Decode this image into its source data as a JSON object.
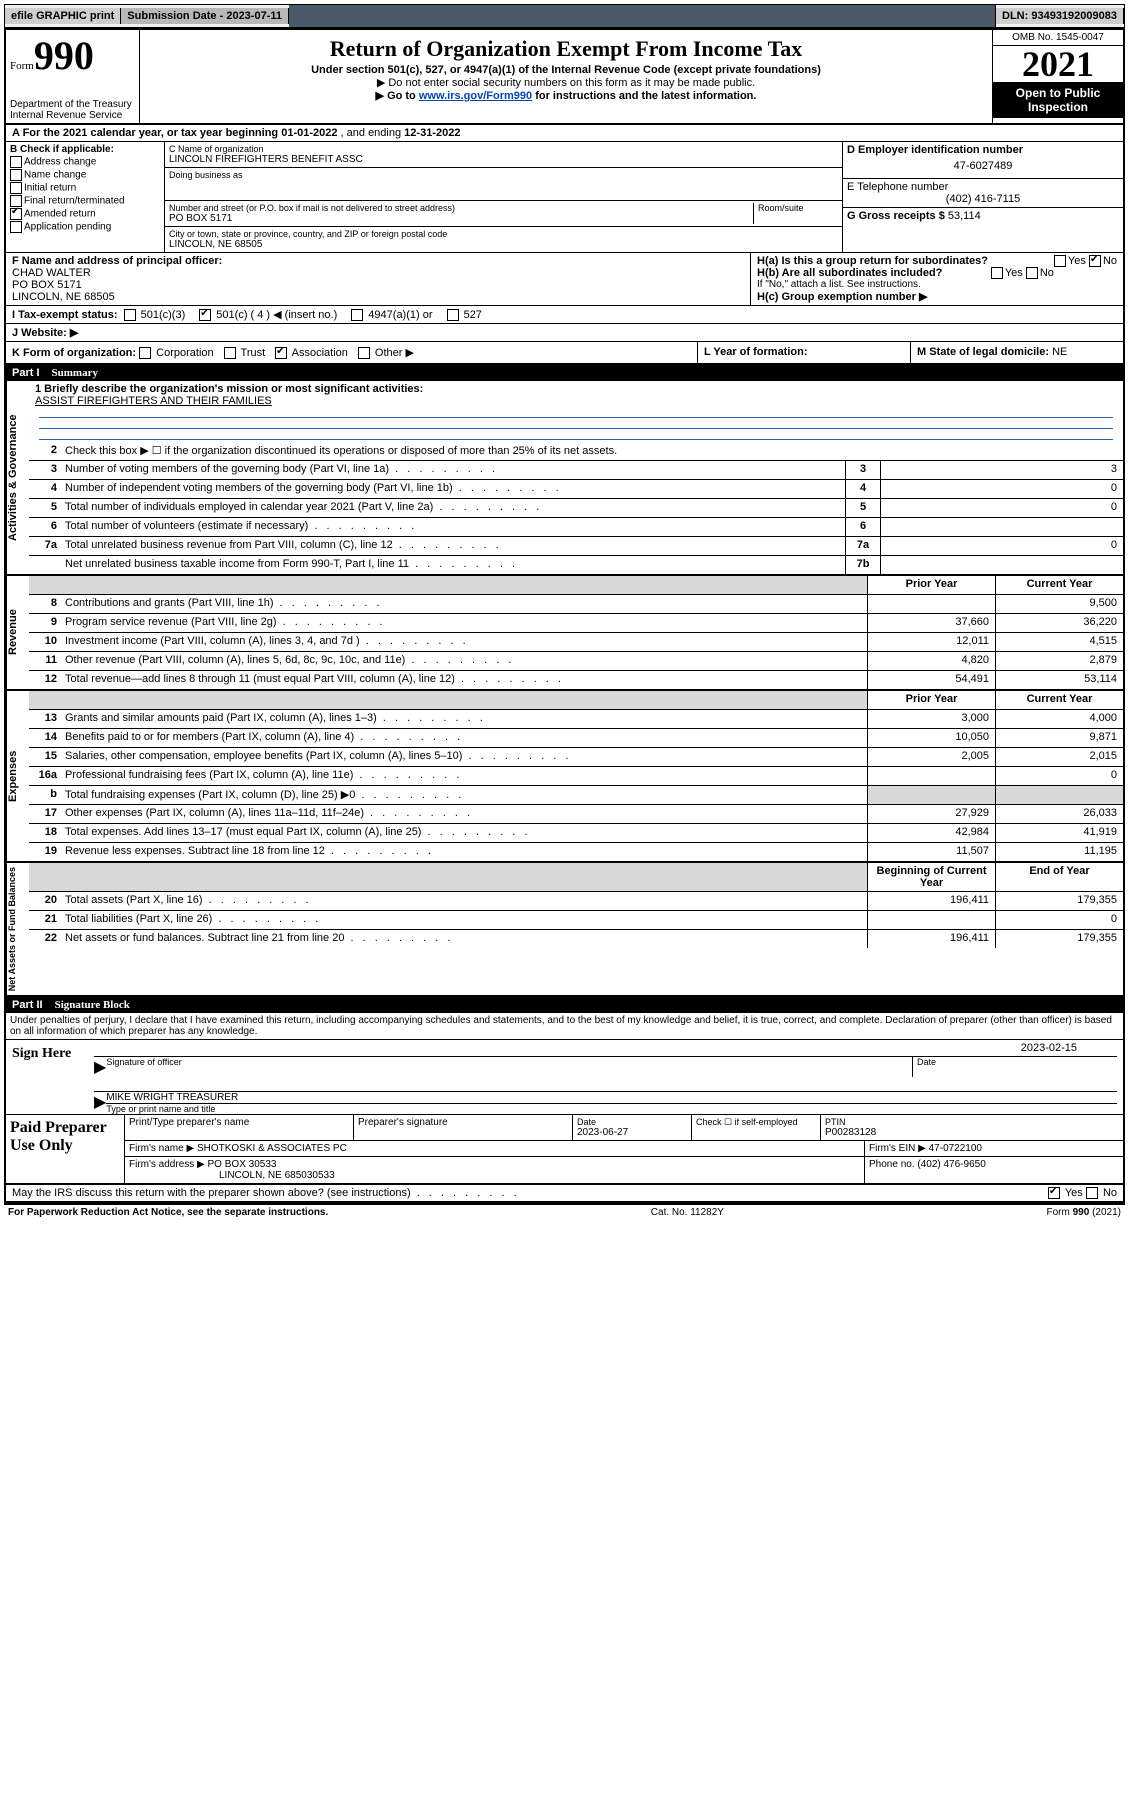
{
  "topbar": {
    "efile": "efile GRAPHIC print",
    "submission_label": "Submission Date - ",
    "submission_date": "2023-07-11",
    "dln_label": "DLN: ",
    "dln": "93493192009083"
  },
  "header": {
    "form_prefix": "Form",
    "form_number": "990",
    "dept": "Department of the Treasury\nInternal Revenue Service",
    "title": "Return of Organization Exempt From Income Tax",
    "subtitle": "Under section 501(c), 527, or 4947(a)(1) of the Internal Revenue Code (except private foundations)",
    "warn": "▶ Do not enter social security numbers on this form as it may be made public.",
    "goto_pre": "▶ Go to ",
    "goto_link": "www.irs.gov/Form990",
    "goto_post": " for instructions and the latest information.",
    "omb": "OMB No. 1545-0047",
    "year": "2021",
    "open": "Open to Public Inspection"
  },
  "period": {
    "line_a_pre": "A For the 2021 calendar year, or tax year beginning ",
    "begin": "01-01-2022",
    "mid": " , and ending ",
    "end": "12-31-2022"
  },
  "box_b": {
    "title": "B Check if applicable:",
    "items": [
      {
        "label": "Address change",
        "checked": false
      },
      {
        "label": "Name change",
        "checked": false
      },
      {
        "label": "Initial return",
        "checked": false
      },
      {
        "label": "Final return/terminated",
        "checked": false
      },
      {
        "label": "Amended return",
        "checked": true
      },
      {
        "label": "Application pending",
        "checked": false
      }
    ]
  },
  "box_c": {
    "name_lbl": "C Name of organization",
    "name": "LINCOLN FIREFIGHTERS BENEFIT ASSC",
    "dba_lbl": "Doing business as",
    "addr_lbl": "Number and street (or P.O. box if mail is not delivered to street address)",
    "room_lbl": "Room/suite",
    "addr": "PO BOX 5171",
    "city_lbl": "City or town, state or province, country, and ZIP or foreign postal code",
    "city": "LINCOLN, NE  68505"
  },
  "box_d": {
    "lbl": "D Employer identification number",
    "val": "47-6027489"
  },
  "box_e": {
    "lbl": "E Telephone number",
    "val": "(402) 416-7115"
  },
  "box_g": {
    "lbl": "G Gross receipts $ ",
    "val": "53,114"
  },
  "box_f": {
    "lbl": "F Name and address of principal officer:",
    "name": "CHAD WALTER",
    "addr1": "PO BOX 5171",
    "addr2": "LINCOLN, NE  68505"
  },
  "box_h": {
    "ha": "H(a)  Is this a group return for subordinates?",
    "ha_yes": "Yes",
    "ha_no": "No",
    "hb": "H(b)  Are all subordinates included?",
    "hb_yes": "Yes",
    "hb_no": "No",
    "hb_note": "If \"No,\" attach a list. See instructions.",
    "hc": "H(c)  Group exemption number ▶"
  },
  "row_i": {
    "lbl": "I   Tax-exempt status:",
    "opts": [
      "501(c)(3)",
      "501(c) ( 4 ) ◀ (insert no.)",
      "4947(a)(1) or",
      "527"
    ],
    "checked_index": 1
  },
  "row_j": {
    "lbl": "J   Website: ▶"
  },
  "row_k": {
    "lbl": "K Form of organization:",
    "opts": [
      "Corporation",
      "Trust",
      "Association",
      "Other ▶"
    ],
    "checked_index": 2,
    "l_lbl": "L Year of formation:",
    "m_lbl": "M State of legal domicile: ",
    "m_val": "NE"
  },
  "parts": {
    "p1": "Part I",
    "p1_title": "Summary",
    "p2": "Part II",
    "p2_title": "Signature Block"
  },
  "mission": {
    "line1_lbl": "1   Briefly describe the organization's mission or most significant activities:",
    "text": "ASSIST FIREFIGHTERS AND THEIR FAMILIES"
  },
  "vlabels": {
    "gov": "Activities & Governance",
    "rev": "Revenue",
    "exp": "Expenses",
    "net": "Net Assets or Fund Balances"
  },
  "col_headers": {
    "prior": "Prior Year",
    "current": "Current Year",
    "begin": "Beginning of Current Year",
    "end": "End of Year"
  },
  "gov_rows": [
    {
      "n": "2",
      "d": "Check this box ▶ ☐  if the organization discontinued its operations or disposed of more than 25% of its net assets."
    },
    {
      "n": "3",
      "d": "Number of voting members of the governing body (Part VI, line 1a)",
      "box": "3",
      "v": "3"
    },
    {
      "n": "4",
      "d": "Number of independent voting members of the governing body (Part VI, line 1b)",
      "box": "4",
      "v": "0"
    },
    {
      "n": "5",
      "d": "Total number of individuals employed in calendar year 2021 (Part V, line 2a)",
      "box": "5",
      "v": "0"
    },
    {
      "n": "6",
      "d": "Total number of volunteers (estimate if necessary)",
      "box": "6",
      "v": ""
    },
    {
      "n": "7a",
      "d": "Total unrelated business revenue from Part VIII, column (C), line 12",
      "box": "7a",
      "v": "0"
    },
    {
      "n": "",
      "d": "Net unrelated business taxable income from Form 990-T, Part I, line 11",
      "box": "7b",
      "v": ""
    }
  ],
  "rev_rows": [
    {
      "n": "8",
      "d": "Contributions and grants (Part VIII, line 1h)",
      "p": "",
      "c": "9,500"
    },
    {
      "n": "9",
      "d": "Program service revenue (Part VIII, line 2g)",
      "p": "37,660",
      "c": "36,220"
    },
    {
      "n": "10",
      "d": "Investment income (Part VIII, column (A), lines 3, 4, and 7d )",
      "p": "12,011",
      "c": "4,515"
    },
    {
      "n": "11",
      "d": "Other revenue (Part VIII, column (A), lines 5, 6d, 8c, 9c, 10c, and 11e)",
      "p": "4,820",
      "c": "2,879"
    },
    {
      "n": "12",
      "d": "Total revenue—add lines 8 through 11 (must equal Part VIII, column (A), line 12)",
      "p": "54,491",
      "c": "53,114"
    }
  ],
  "exp_rows": [
    {
      "n": "13",
      "d": "Grants and similar amounts paid (Part IX, column (A), lines 1–3)",
      "p": "3,000",
      "c": "4,000"
    },
    {
      "n": "14",
      "d": "Benefits paid to or for members (Part IX, column (A), line 4)",
      "p": "10,050",
      "c": "9,871"
    },
    {
      "n": "15",
      "d": "Salaries, other compensation, employee benefits (Part IX, column (A), lines 5–10)",
      "p": "2,005",
      "c": "2,015"
    },
    {
      "n": "16a",
      "d": "Professional fundraising fees (Part IX, column (A), line 11e)",
      "p": "",
      "c": "0"
    },
    {
      "n": "b",
      "d": "Total fundraising expenses (Part IX, column (D), line 25) ▶0",
      "p": "GRAY",
      "c": "GRAY"
    },
    {
      "n": "17",
      "d": "Other expenses (Part IX, column (A), lines 11a–11d, 11f–24e)",
      "p": "27,929",
      "c": "26,033"
    },
    {
      "n": "18",
      "d": "Total expenses. Add lines 13–17 (must equal Part IX, column (A), line 25)",
      "p": "42,984",
      "c": "41,919"
    },
    {
      "n": "19",
      "d": "Revenue less expenses. Subtract line 18 from line 12",
      "p": "11,507",
      "c": "11,195"
    }
  ],
  "net_rows": [
    {
      "n": "20",
      "d": "Total assets (Part X, line 16)",
      "p": "196,411",
      "c": "179,355"
    },
    {
      "n": "21",
      "d": "Total liabilities (Part X, line 26)",
      "p": "",
      "c": "0"
    },
    {
      "n": "22",
      "d": "Net assets or fund balances. Subtract line 21 from line 20",
      "p": "196,411",
      "c": "179,355"
    }
  ],
  "declaration": "Under penalties of perjury, I declare that I have examined this return, including accompanying schedules and statements, and to the best of my knowledge and belief, it is true, correct, and complete. Declaration of preparer (other than officer) is based on all information of which preparer has any knowledge.",
  "sign": {
    "here": "Sign Here",
    "sig_lbl": "Signature of officer",
    "date_lbl": "Date",
    "date": "2023-02-15",
    "name": "MIKE WRIGHT TREASURER",
    "name_lbl": "Type or print name and title"
  },
  "paid": {
    "title": "Paid Preparer Use Only",
    "h1": "Print/Type preparer's name",
    "h2": "Preparer's signature",
    "h3_lbl": "Date",
    "h3": "2023-06-27",
    "h4": "Check ☐ if self-employed",
    "h5_lbl": "PTIN",
    "h5": "P00283128",
    "firm_name_lbl": "Firm's name    ▶ ",
    "firm_name": "SHOTKOSKI & ASSOCIATES PC",
    "firm_ein_lbl": "Firm's EIN ▶ ",
    "firm_ein": "47-0722100",
    "firm_addr_lbl": "Firm's address ▶ ",
    "firm_addr1": "PO BOX 30533",
    "firm_addr2": "LINCOLN, NE  685030533",
    "phone_lbl": "Phone no. ",
    "phone": "(402) 476-9650"
  },
  "discuss": {
    "q": "May the IRS discuss this return with the preparer shown above? (see instructions)",
    "yes": "Yes",
    "no": "No"
  },
  "footer": {
    "left": "For Paperwork Reduction Act Notice, see the separate instructions.",
    "mid": "Cat. No. 11282Y",
    "right_pre": "Form ",
    "right_b": "990",
    "right_post": " (2021)"
  }
}
